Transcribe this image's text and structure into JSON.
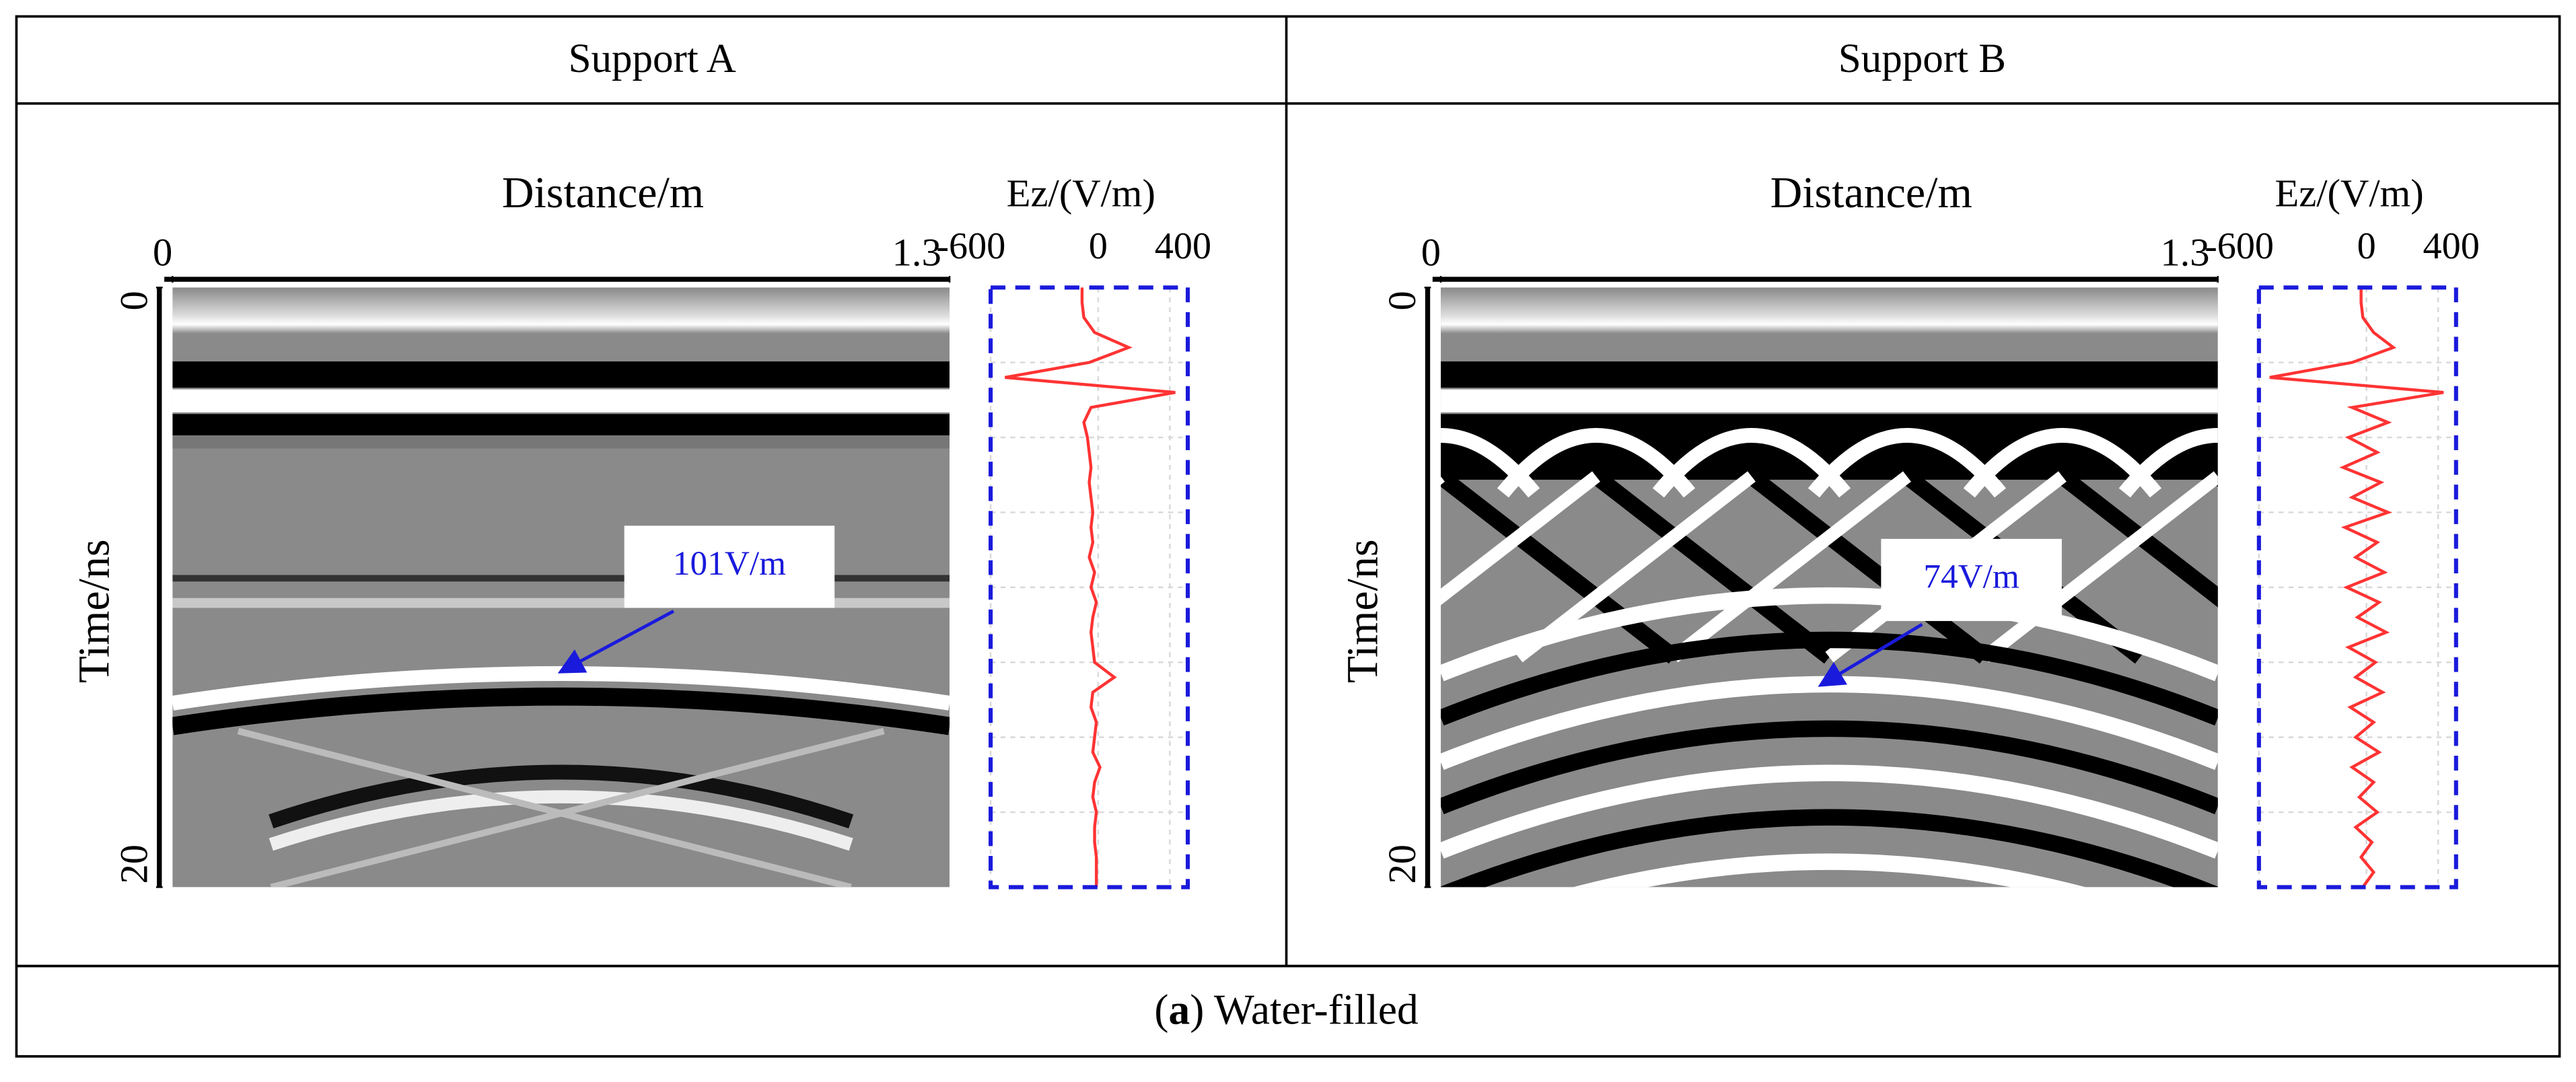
{
  "table": {
    "headers": [
      "Support A",
      "Support B"
    ],
    "caption": {
      "open": "(",
      "label": "a",
      "close": ")",
      "text": "Water-filled"
    }
  },
  "panels": [
    {
      "radargram": {
        "x_label": "Distance/m",
        "y_label": "Time/ns",
        "xlim": [
          0,
          1.3
        ],
        "xticks": [
          0,
          1.3
        ],
        "ylim": [
          0,
          20
        ],
        "yticks": [
          0,
          20
        ],
        "annotation": "101V/m"
      },
      "trace": {
        "type": "line",
        "title": "Ez/(V/m)",
        "xlim": [
          -600,
          500
        ],
        "xticks": [
          -600,
          0,
          400
        ],
        "ylim": [
          0,
          20
        ],
        "color": "#ff3333",
        "time": [
          0,
          0.5,
          1,
          1.5,
          2,
          2.5,
          3,
          3.5,
          4,
          4.5,
          5,
          5.5,
          6,
          6.5,
          7,
          7.5,
          8,
          8.5,
          9,
          9.5,
          10,
          10.5,
          11,
          11.5,
          12,
          12.5,
          13,
          13.5,
          14,
          14.5,
          15,
          15.5,
          16,
          16.5,
          17,
          17.5,
          18,
          18.5,
          19,
          19.5,
          20
        ],
        "values": [
          -90,
          -90,
          -80,
          -20,
          170,
          -50,
          -520,
          430,
          -40,
          -80,
          -60,
          -50,
          -40,
          -50,
          -40,
          -30,
          -40,
          -30,
          -50,
          -20,
          -40,
          -10,
          -30,
          -40,
          -30,
          -20,
          90,
          -30,
          -40,
          -10,
          -20,
          -30,
          10,
          -20,
          -30,
          -10,
          -20,
          -20,
          -10,
          -10,
          -10
        ]
      }
    },
    {
      "radargram": {
        "x_label": "Distance/m",
        "y_label": "Time/ns",
        "xlim": [
          0,
          1.3
        ],
        "xticks": [
          0,
          1.3
        ],
        "ylim": [
          0,
          20
        ],
        "yticks": [
          0,
          20
        ],
        "annotation": "74V/m"
      },
      "trace": {
        "type": "line",
        "title": "Ez/(V/m)",
        "xlim": [
          -600,
          500
        ],
        "xticks": [
          -600,
          0,
          400
        ],
        "ylim": [
          0,
          20
        ],
        "color": "#ff3333",
        "time": [
          0,
          0.5,
          1,
          1.5,
          2,
          2.5,
          3,
          3.5,
          4,
          4.5,
          5,
          5.5,
          6,
          6.5,
          7,
          7.5,
          8,
          8.5,
          9,
          9.5,
          10,
          10.5,
          11,
          11.5,
          12,
          12.5,
          13,
          13.5,
          14,
          14.5,
          15,
          15.5,
          16,
          16.5,
          17,
          17.5,
          18,
          18.5,
          19,
          19.5,
          20
        ],
        "values": [
          -30,
          -30,
          -20,
          40,
          150,
          -80,
          -540,
          430,
          -80,
          120,
          -100,
          60,
          -130,
          80,
          -80,
          120,
          -120,
          60,
          -60,
          100,
          -110,
          70,
          -50,
          110,
          -100,
          50,
          -60,
          90,
          -90,
          40,
          -60,
          70,
          -80,
          40,
          -40,
          60,
          -60,
          30,
          -30,
          40,
          -20
        ]
      }
    }
  ]
}
